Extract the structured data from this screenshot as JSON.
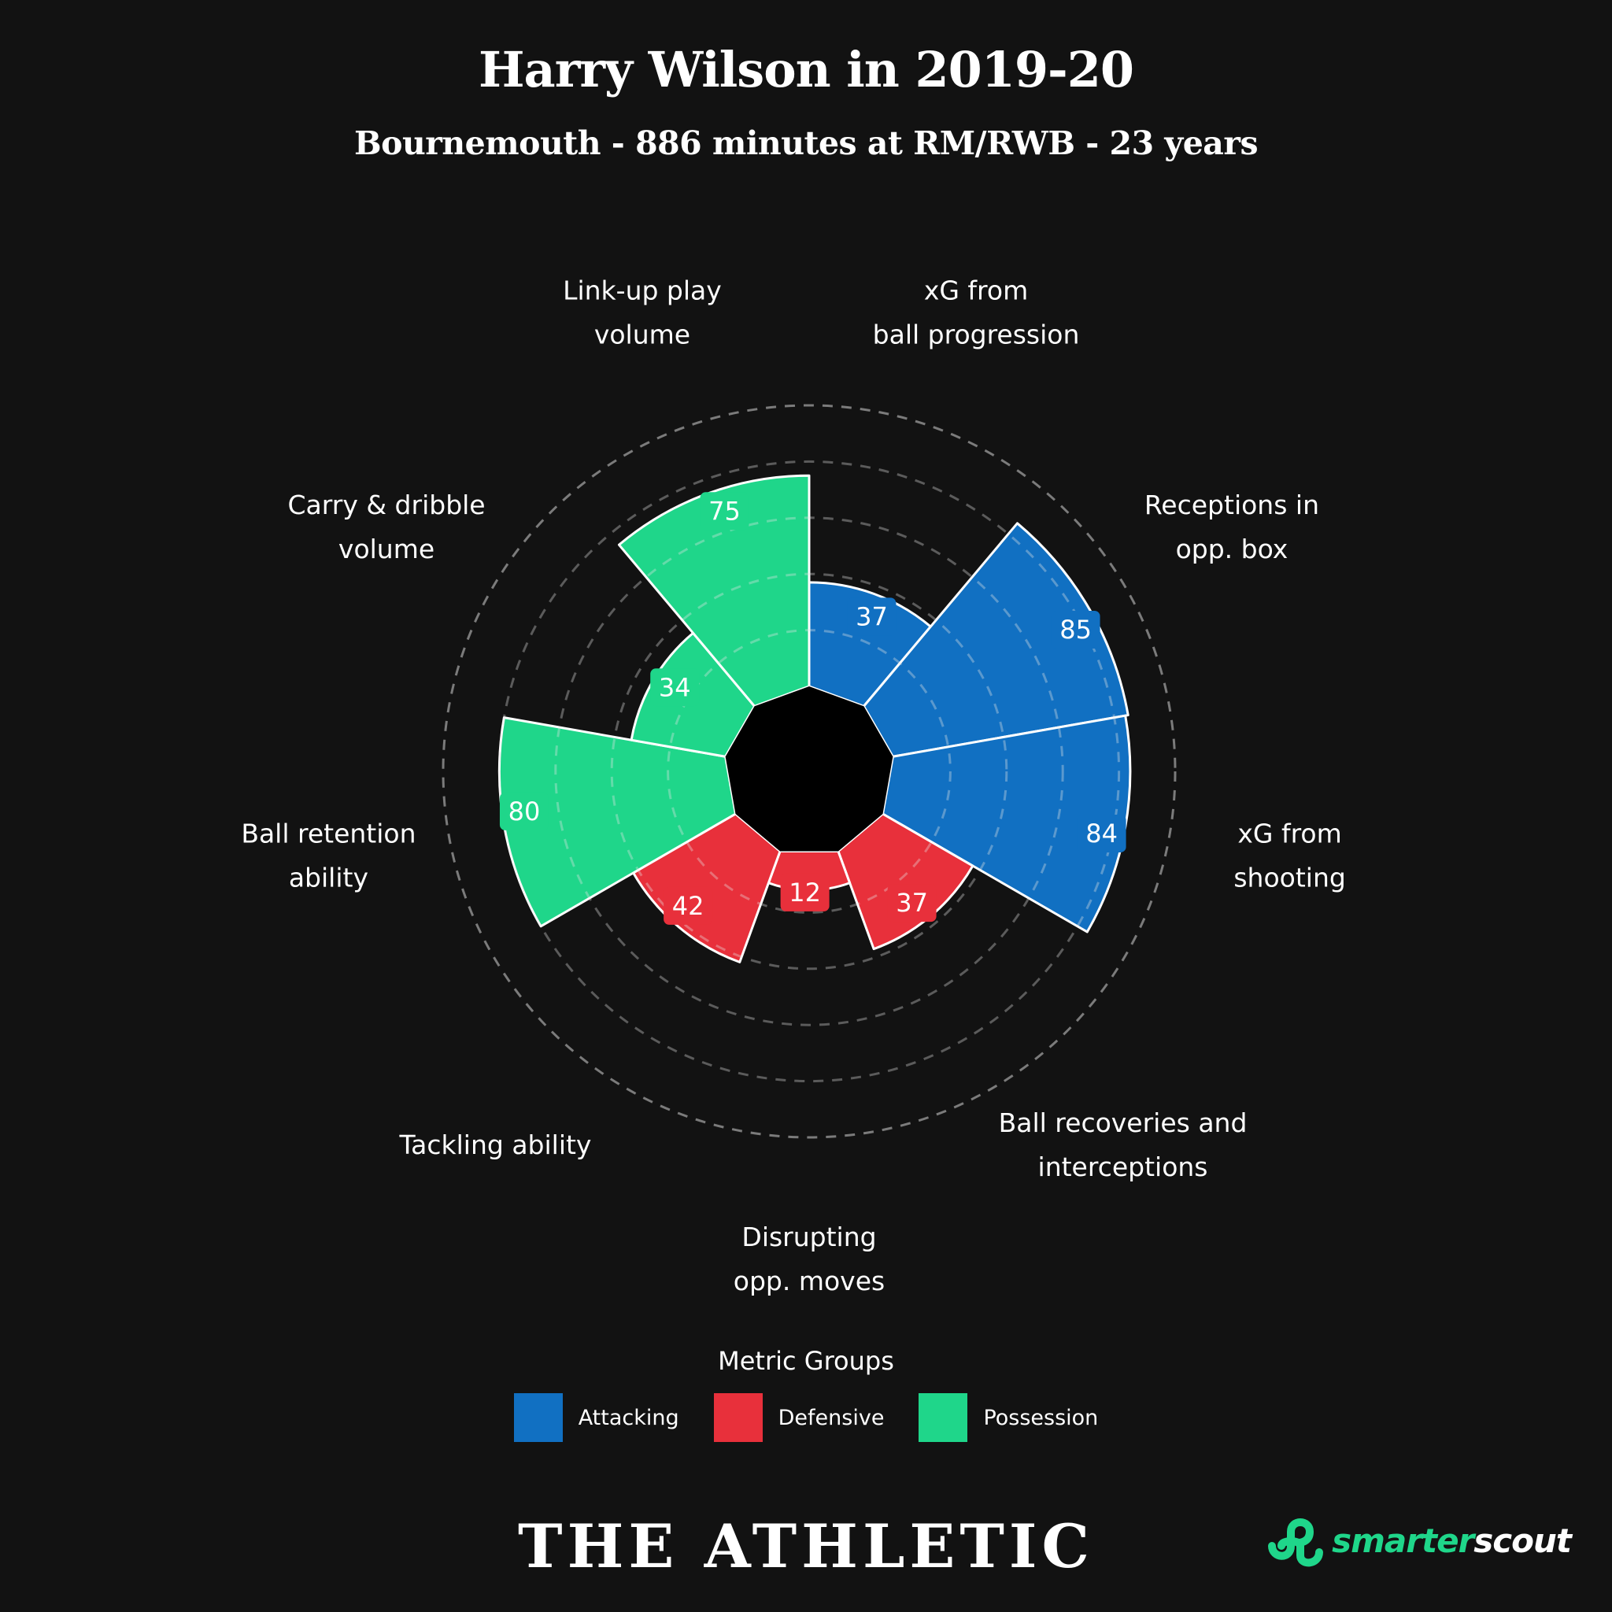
{
  "header": {
    "title": "Harry Wilson in 2019-20",
    "subtitle": "Bournemouth - 886 minutes at RM/RWB - 23 years"
  },
  "legend": {
    "title": "Metric Groups",
    "items": [
      {
        "label": "Attacking",
        "color": "#1170c2"
      },
      {
        "label": "Defensive",
        "color": "#e8303b"
      },
      {
        "label": "Possession",
        "color": "#1fd68a"
      }
    ]
  },
  "footer": {
    "brand": "THE ATHLETIC",
    "logo_part1": "smarter",
    "logo_part2": "scout",
    "logo_icon": "smarterscout-logo-icon"
  },
  "chart_data": {
    "type": "radar",
    "ylim": [
      0,
      100
    ],
    "gridlines": [
      20,
      40,
      60,
      80,
      100
    ],
    "grid": true,
    "legend_placement": "bottom-center",
    "start": "top, clockwise",
    "categories": [
      [
        "xG from",
        "ball progression"
      ],
      [
        "Receptions in",
        "opp. box"
      ],
      [
        "xG from",
        "shooting"
      ],
      [
        "Ball recoveries and",
        "interceptions"
      ],
      [
        "Disrupting",
        "opp. moves"
      ],
      [
        "Tackling ability"
      ],
      [
        "Ball retention",
        "ability"
      ],
      [
        "Carry & dribble",
        "volume"
      ],
      [
        "Link-up play",
        "volume"
      ]
    ],
    "values": [
      37,
      85,
      84,
      37,
      12,
      42,
      80,
      34,
      75
    ],
    "groups": [
      "Attacking",
      "Attacking",
      "Attacking",
      "Defensive",
      "Defensive",
      "Defensive",
      "Possession",
      "Possession",
      "Possession"
    ]
  }
}
